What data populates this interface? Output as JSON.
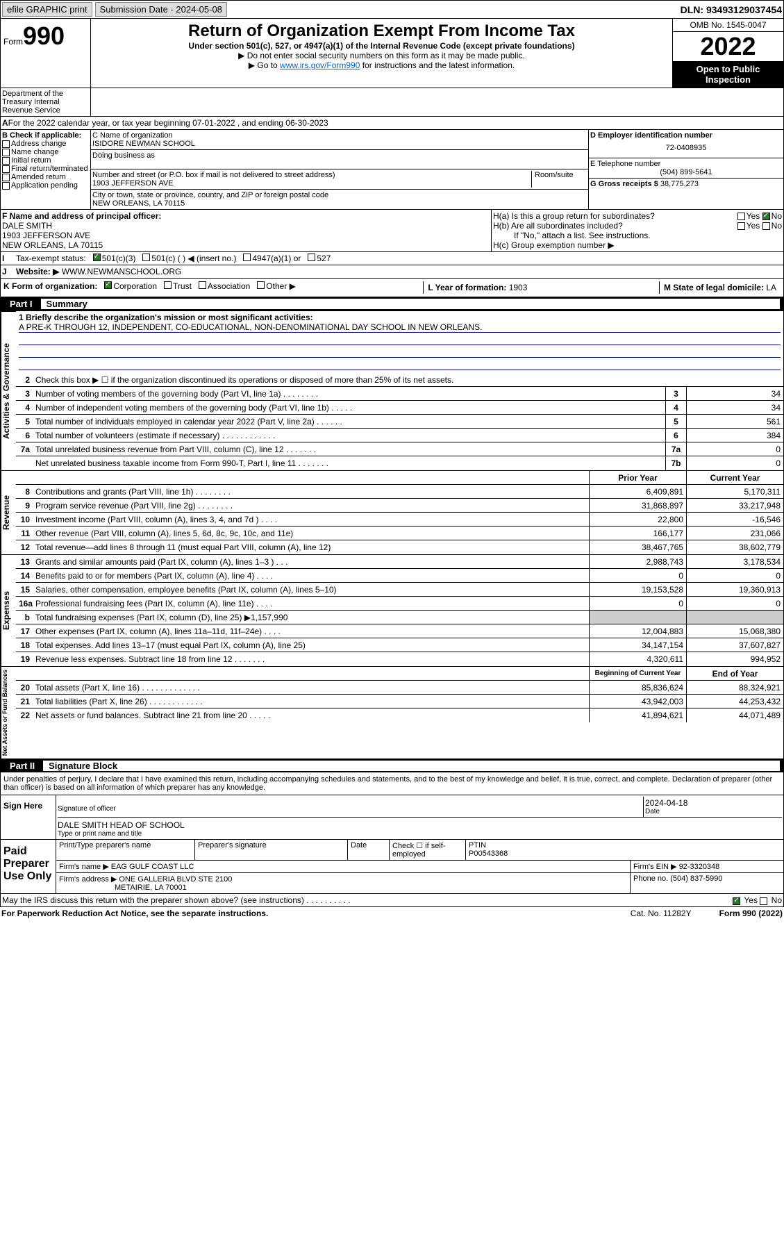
{
  "top": {
    "efile": "efile GRAPHIC print",
    "sub_label": "Submission Date - 2024-05-08",
    "dln": "DLN: 93493129037454"
  },
  "header": {
    "form_label": "Form",
    "form_num": "990",
    "title": "Return of Organization Exempt From Income Tax",
    "subtitle": "Under section 501(c), 527, or 4947(a)(1) of the Internal Revenue Code (except private foundations)",
    "note1": "▶ Do not enter social security numbers on this form as it may be made public.",
    "note2_pre": "▶ Go to ",
    "note2_link": "www.irs.gov/Form990",
    "note2_post": " for instructions and the latest information.",
    "omb": "OMB No. 1545-0047",
    "year": "2022",
    "public": "Open to Public Inspection",
    "dept": "Department of the Treasury Internal Revenue Service"
  },
  "period": "For the 2022 calendar year, or tax year beginning 07-01-2022    , and ending 06-30-2023",
  "section_b": {
    "title": "B Check if applicable:",
    "items": [
      "Address change",
      "Name change",
      "Initial return",
      "Final return/terminated",
      "Amended return",
      "Application pending"
    ]
  },
  "section_c": {
    "name_lbl": "C Name of organization",
    "name": "ISIDORE NEWMAN SCHOOL",
    "dba_lbl": "Doing business as",
    "addr_lbl": "Number and street (or P.O. box if mail is not delivered to street address)",
    "room_lbl": "Room/suite",
    "addr": "1903 JEFFERSON AVE",
    "city_lbl": "City or town, state or province, country, and ZIP or foreign postal code",
    "city": "NEW ORLEANS, LA   70115"
  },
  "section_d": {
    "lbl": "D Employer identification number",
    "val": "72-0408935"
  },
  "section_e": {
    "lbl": "E Telephone number",
    "val": "(504) 899-5641"
  },
  "section_g": {
    "lbl": "G Gross receipts $",
    "val": "38,775,273"
  },
  "section_f": {
    "lbl": "F  Name and address of principal officer:",
    "name": "DALE SMITH",
    "addr": "1903 JEFFERSON AVE",
    "city": "NEW ORLEANS, LA   70115"
  },
  "section_h": {
    "a": "H(a)  Is this a group return for subordinates?",
    "b": "H(b)  Are all subordinates included?",
    "b_note": "If \"No,\" attach a list. See instructions.",
    "c": "H(c)  Group exemption number ▶"
  },
  "row_i": {
    "lbl": "Tax-exempt status:",
    "opts": [
      "501(c)(3)",
      "501(c) (  ) ◀ (insert no.)",
      "4947(a)(1) or",
      "527"
    ]
  },
  "row_j": {
    "lbl": "Website: ▶",
    "val": "WWW.NEWMANSCHOOL.ORG"
  },
  "row_k": {
    "lbl": "K Form of organization:",
    "opts": [
      "Corporation",
      "Trust",
      "Association",
      "Other ▶"
    ]
  },
  "row_l": {
    "lbl": "L Year of formation:",
    "val": "1903"
  },
  "row_m": {
    "lbl": "M State of legal domicile:",
    "val": "LA"
  },
  "part1": {
    "name": "Part I",
    "title": "Summary"
  },
  "mission": {
    "lbl": "1  Briefly describe the organization's mission or most significant activities:",
    "text": "A PRE-K THROUGH 12, INDEPENDENT, CO-EDUCATIONAL, NON-DENOMINATIONAL DAY SCHOOL IN NEW ORLEANS."
  },
  "line2": "Check this box ▶ ☐  if the organization discontinued its operations or disposed of more than 25% of its net assets.",
  "gov_lines": [
    {
      "n": "3",
      "t": "Number of voting members of the governing body (Part VI, line 1a)   .   .   .   .   .   .   .   .",
      "box": "3",
      "v": "34"
    },
    {
      "n": "4",
      "t": "Number of independent voting members of the governing body (Part VI, line 1b)   .   .   .   .   .",
      "box": "4",
      "v": "34"
    },
    {
      "n": "5",
      "t": "Total number of individuals employed in calendar year 2022 (Part V, line 2a)   .   .   .   .   .   .",
      "box": "5",
      "v": "561"
    },
    {
      "n": "6",
      "t": "Total number of volunteers (estimate if necessary)   .   .   .   .   .   .   .   .   .   .   .   .",
      "box": "6",
      "v": "384"
    },
    {
      "n": "7a",
      "t": "Total unrelated business revenue from Part VIII, column (C), line 12   .   .   .   .   .   .   .",
      "box": "7a",
      "v": "0"
    },
    {
      "n": "",
      "t": "Net unrelated business taxable income from Form 990-T, Part I, line 11   .   .   .   .   .   .   .",
      "box": "7b",
      "v": "0"
    }
  ],
  "year_hdr": {
    "prior": "Prior Year",
    "current": "Current Year"
  },
  "rev_lines": [
    {
      "n": "8",
      "t": "Contributions and grants (Part VIII, line 1h)   .   .   .   .   .   .   .   .",
      "p": "6,409,891",
      "c": "5,170,311"
    },
    {
      "n": "9",
      "t": "Program service revenue (Part VIII, line 2g)   .   .   .   .   .   .   .   .",
      "p": "31,868,897",
      "c": "33,217,948"
    },
    {
      "n": "10",
      "t": "Investment income (Part VIII, column (A), lines 3, 4, and 7d )   .   .   .   .",
      "p": "22,800",
      "c": "-16,546"
    },
    {
      "n": "11",
      "t": "Other revenue (Part VIII, column (A), lines 5, 6d, 8c, 9c, 10c, and 11e)",
      "p": "166,177",
      "c": "231,066"
    },
    {
      "n": "12",
      "t": "Total revenue—add lines 8 through 11 (must equal Part VIII, column (A), line 12)",
      "p": "38,467,765",
      "c": "38,602,779"
    }
  ],
  "exp_lines": [
    {
      "n": "13",
      "t": "Grants and similar amounts paid (Part IX, column (A), lines 1–3 )   .   .   .",
      "p": "2,988,743",
      "c": "3,178,534"
    },
    {
      "n": "14",
      "t": "Benefits paid to or for members (Part IX, column (A), line 4)   .   .   .   .",
      "p": "0",
      "c": "0"
    },
    {
      "n": "15",
      "t": "Salaries, other compensation, employee benefits (Part IX, column (A), lines 5–10)",
      "p": "19,153,528",
      "c": "19,360,913"
    },
    {
      "n": "16a",
      "t": "Professional fundraising fees (Part IX, column (A), line 11e)   .   .   .   .",
      "p": "0",
      "c": "0"
    },
    {
      "n": "b",
      "t": "Total fundraising expenses (Part IX, column (D), line 25) ▶1,157,990",
      "p": "",
      "c": "",
      "shade": true
    },
    {
      "n": "17",
      "t": "Other expenses (Part IX, column (A), lines 11a–11d, 11f–24e)   .   .   .   .",
      "p": "12,004,883",
      "c": "15,068,380"
    },
    {
      "n": "18",
      "t": "Total expenses. Add lines 13–17 (must equal Part IX, column (A), line 25)",
      "p": "34,147,154",
      "c": "37,607,827"
    },
    {
      "n": "19",
      "t": "Revenue less expenses. Subtract line 18 from line 12   .   .   .   .   .   .   .",
      "p": "4,320,611",
      "c": "994,952"
    }
  ],
  "bal_hdr": {
    "beg": "Beginning of Current Year",
    "end": "End of Year"
  },
  "bal_lines": [
    {
      "n": "20",
      "t": "Total assets (Part X, line 16)   .   .   .   .   .   .   .   .   .   .   .   .   .",
      "p": "85,836,624",
      "c": "88,324,921"
    },
    {
      "n": "21",
      "t": "Total liabilities (Part X, line 26)   .   .   .   .   .   .   .   .   .   .   .   .",
      "p": "43,942,003",
      "c": "44,253,432"
    },
    {
      "n": "22",
      "t": "Net assets or fund balances. Subtract line 21 from line 20   .   .   .   .   .",
      "p": "41,894,621",
      "c": "44,071,489"
    }
  ],
  "part2": {
    "name": "Part II",
    "title": "Signature Block"
  },
  "sig": {
    "intro": "Under penalties of perjury, I declare that I have examined this return, including accompanying schedules and statements, and to the best of my knowledge and belief, it is true, correct, and complete. Declaration of preparer (other than officer) is based on all information of which preparer has any knowledge.",
    "here": "Sign Here",
    "officer_lbl": "Signature of officer",
    "date_lbl": "Date",
    "date": "2024-04-18",
    "name": "DALE SMITH  HEAD OF SCHOOL",
    "name_lbl": "Type or print name and title",
    "paid": "Paid Preparer Use Only",
    "prep_name_lbl": "Print/Type preparer's name",
    "prep_sig_lbl": "Preparer's signature",
    "prep_date_lbl": "Date",
    "check_lbl": "Check ☐ if self-employed",
    "ptin_lbl": "PTIN",
    "ptin": "P00543368",
    "firm_name_lbl": "Firm's name   ▶",
    "firm_name": "EAG GULF COAST LLC",
    "firm_ein_lbl": "Firm's EIN ▶",
    "firm_ein": "92-3320348",
    "firm_addr_lbl": "Firm's address ▶",
    "firm_addr": "ONE GALLERIA BLVD STE 2100",
    "firm_city": "METAIRIE, LA   70001",
    "phone_lbl": "Phone no.",
    "phone": "(504) 837-5990",
    "discuss": "May the IRS discuss this return with the preparer shown above? (see instructions)   .   .   .   .   .   .   .   .   .   .",
    "yes": "Yes",
    "no": "No"
  },
  "footer": {
    "left": "For Paperwork Reduction Act Notice, see the separate instructions.",
    "mid": "Cat. No. 11282Y",
    "right": "Form 990 (2022)"
  },
  "vlabels": {
    "gov": "Activities & Governance",
    "rev": "Revenue",
    "exp": "Expenses",
    "bal": "Net Assets or Fund Balances"
  }
}
